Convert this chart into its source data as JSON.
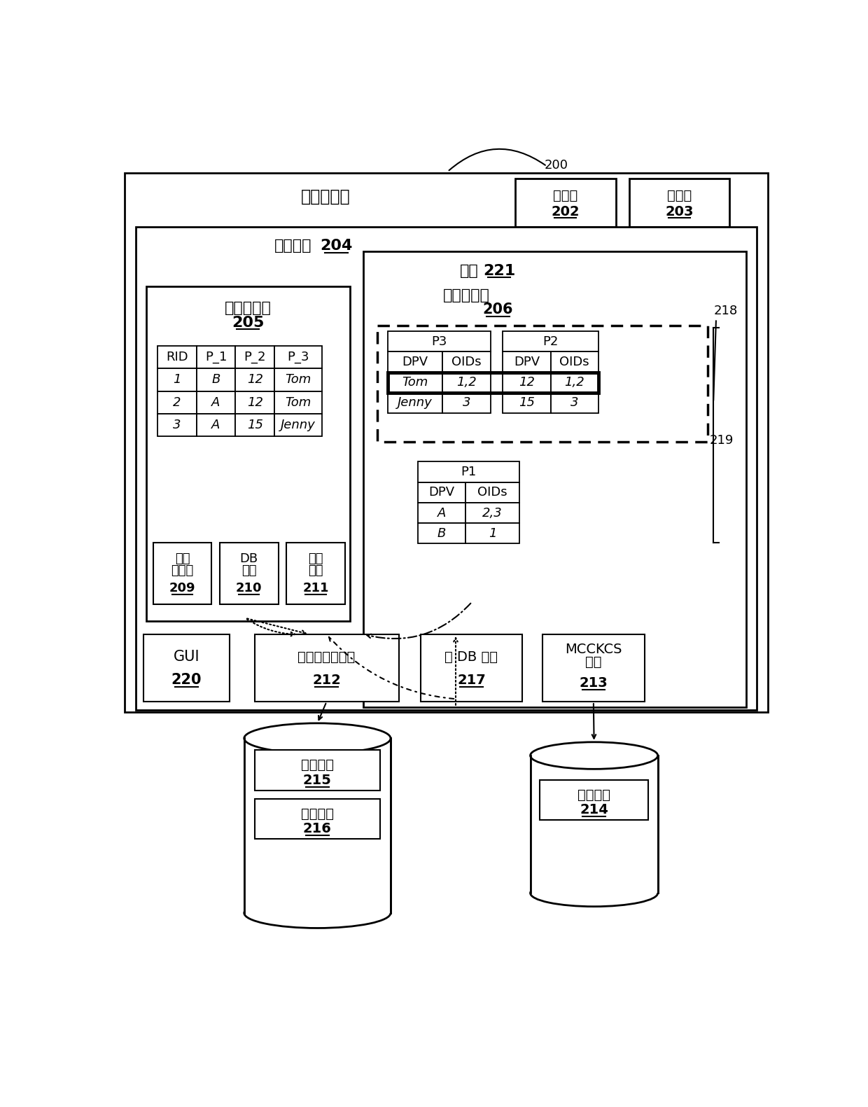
{
  "bg_color": "#ffffff",
  "title": "计算机系统",
  "label_200": "200",
  "label_202_line1": "处理器",
  "label_202_line2": "202",
  "label_203_line1": "存储器",
  "label_203_line2": "203",
  "label_204": "存储介质",
  "label_204_num": "204",
  "label_205_line1": "关系数据库",
  "label_205_num": "205",
  "label_206_line1": "列式数据库",
  "label_206_num": "206",
  "label_221": "接口",
  "label_221_num": "221",
  "label_218": "218",
  "label_219": "219",
  "label_209_l1": "查询",
  "label_209_l2": "规划器",
  "label_209_num": "209",
  "label_210_l1": "DB",
  "label_210_l2": "目录",
  "label_210_num": "210",
  "label_211_l1": "索引",
  "label_211_l2": "创建",
  "label_211_num": "211",
  "label_220_l1": "GUI",
  "label_220_num": "220",
  "label_212_l1": "数据提取和变换",
  "label_212_num": "212",
  "label_217_l1": "源 DB 更新",
  "label_217_num": "217",
  "label_213_l1": "MCCKCS",
  "label_213_l2": "检测",
  "label_213_num": "213",
  "label_215_l1": "第二条件",
  "label_215_num": "215",
  "label_216_l1": "第三条件",
  "label_216_num": "216",
  "label_214_l1": "第一条件",
  "label_214_num": "214",
  "p3_header": "P3",
  "p2_header": "P2",
  "p1_header": "P1",
  "col_dpv": "DPV",
  "col_oids": "OIDs",
  "rid_header": "RID",
  "p1_col": "P_1",
  "p2_col": "P_2",
  "p3_col": "P_3",
  "rel_data": [
    [
      "1",
      "B",
      "12",
      "Tom"
    ],
    [
      "2",
      "A",
      "12",
      "Tom"
    ],
    [
      "3",
      "A",
      "15",
      "Jenny"
    ]
  ],
  "p3_data": [
    [
      "Tom",
      "1,2"
    ],
    [
      "Jenny",
      "3"
    ]
  ],
  "p2_data": [
    [
      "12",
      "1,2"
    ],
    [
      "15",
      "3"
    ]
  ],
  "p1_data": [
    [
      "A",
      "2,3"
    ],
    [
      "B",
      "1"
    ]
  ]
}
